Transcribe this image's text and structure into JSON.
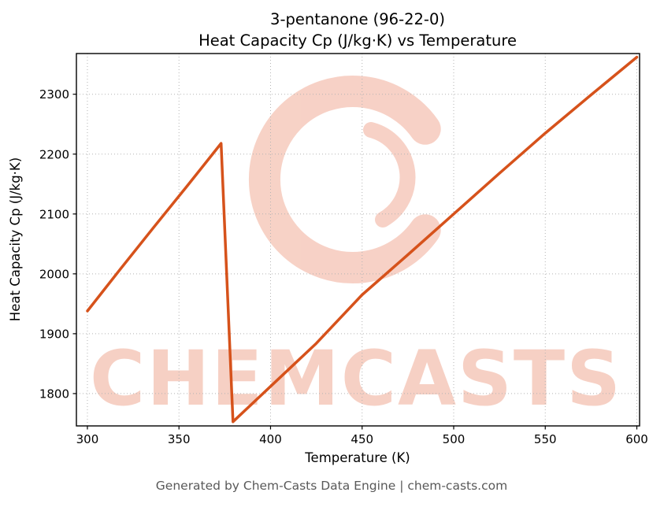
{
  "title": {
    "line1": "3-pentanone (96-22-0)",
    "line2": "Heat Capacity Cp (J/kg·K) vs Temperature"
  },
  "footer": "Generated by Chem-Casts Data Engine | chem-casts.com",
  "watermark": {
    "text": "CHEMCASTS",
    "color": "#efa28b"
  },
  "chart_data": {
    "type": "line",
    "title": "3-pentanone (96-22-0) — Heat Capacity Cp (J/kg·K) vs Temperature",
    "xlabel": "Temperature (K)",
    "ylabel": "Heat Capacity Cp (J/kg·K)",
    "xlim": [
      294,
      601.5
    ],
    "ylim": [
      1746,
      2368
    ],
    "x_ticks": [
      300,
      350,
      400,
      450,
      500,
      550,
      600
    ],
    "y_ticks": [
      1800,
      1900,
      2000,
      2100,
      2200,
      2300
    ],
    "grid": true,
    "legend": "none",
    "line_color": "#d6521b",
    "series": [
      {
        "name": "Heat Capacity Cp",
        "color": "#d6521b",
        "points": [
          [
            300,
            1938
          ],
          [
            318,
            2008
          ],
          [
            336,
            2077
          ],
          [
            354,
            2145
          ],
          [
            366,
            2191
          ],
          [
            373,
            2218
          ],
          [
            379.5,
            1753
          ],
          [
            400,
            1812
          ],
          [
            425,
            1884
          ],
          [
            450,
            1965
          ],
          [
            475,
            2032
          ],
          [
            500,
            2100
          ],
          [
            525,
            2168
          ],
          [
            550,
            2235
          ],
          [
            575,
            2299
          ],
          [
            600,
            2362
          ]
        ]
      }
    ]
  }
}
